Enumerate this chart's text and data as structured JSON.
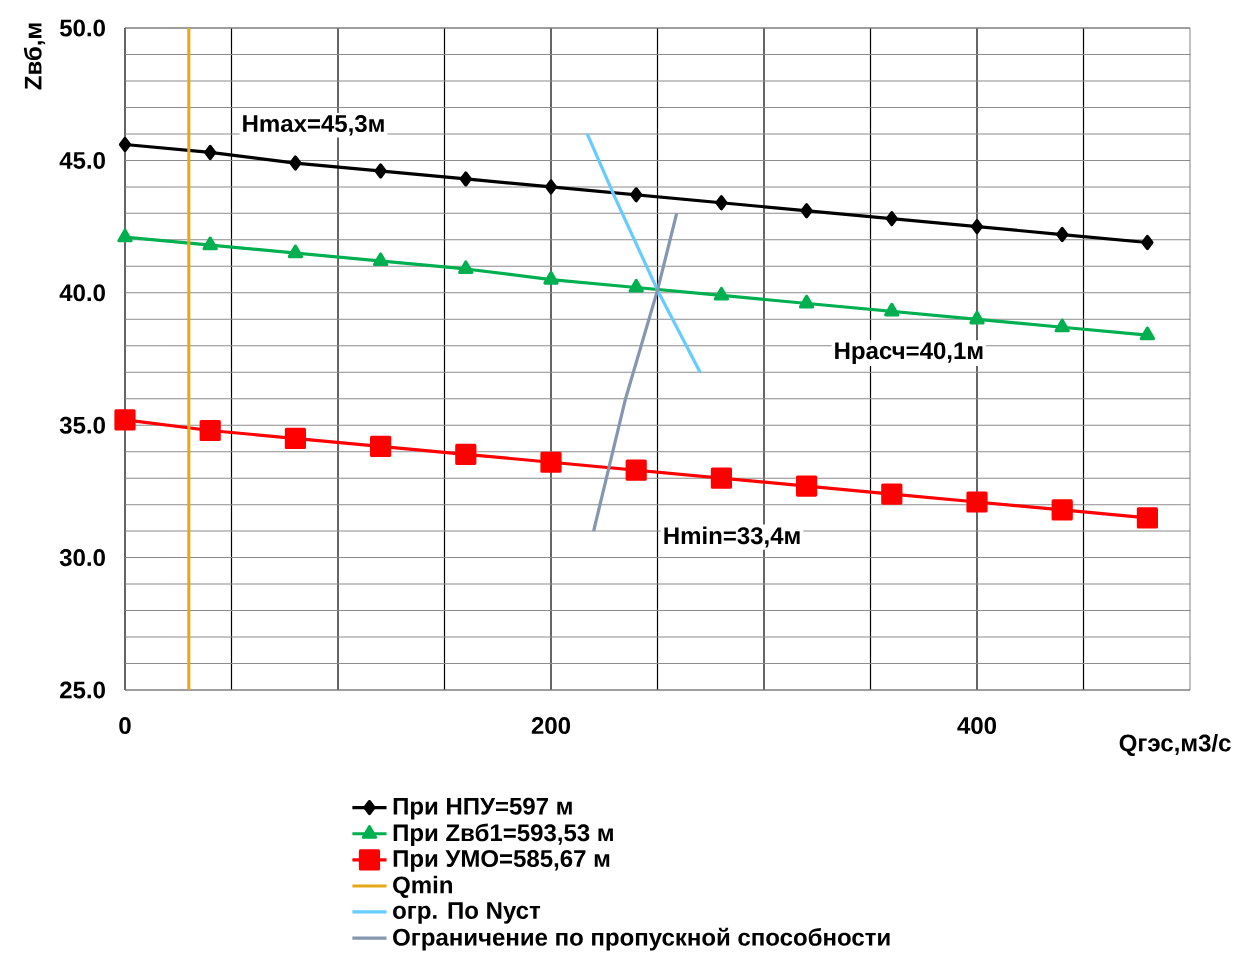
{
  "chart_data": {
    "type": "line",
    "xlabel": "Qгэс,м3/с",
    "ylabel": "Zвб,м",
    "xlim": [
      0,
      500
    ],
    "ylim": [
      25,
      50
    ],
    "xticks": [
      0,
      {
        "value": 50,
        "label": null
      },
      {
        "value": 100,
        "label": null
      },
      {
        "value": 150,
        "label": null
      },
      200,
      {
        "value": 250,
        "label": null
      },
      {
        "value": 300,
        "label": null
      },
      {
        "value": 350,
        "label": null
      },
      400,
      {
        "value": 450,
        "label": null
      }
    ],
    "yticks": [
      {
        "value": 25,
        "label": "25.0"
      },
      {
        "value": 26,
        "label": null
      },
      {
        "value": 27,
        "label": null
      },
      {
        "value": 28,
        "label": null
      },
      {
        "value": 29,
        "label": null
      },
      {
        "value": 30,
        "label": "30.0"
      },
      {
        "value": 31,
        "label": null
      },
      {
        "value": 32,
        "label": null
      },
      {
        "value": 33,
        "label": null
      },
      {
        "value": 34,
        "label": null
      },
      {
        "value": 35,
        "label": "35.0"
      },
      {
        "value": 36,
        "label": null
      },
      {
        "value": 37,
        "label": null
      },
      {
        "value": 38,
        "label": null
      },
      {
        "value": 39,
        "label": null
      },
      {
        "value": 40,
        "label": "40.0"
      },
      {
        "value": 41,
        "label": null
      },
      {
        "value": 42,
        "label": null
      },
      {
        "value": 43,
        "label": null
      },
      {
        "value": 44,
        "label": null
      },
      {
        "value": 45,
        "label": "45.0"
      },
      {
        "value": 46,
        "label": null
      },
      {
        "value": 47,
        "label": null
      },
      {
        "value": 48,
        "label": null
      },
      {
        "value": 49,
        "label": null
      },
      {
        "value": 50,
        "label": "50.0"
      }
    ],
    "grid": true,
    "legend": "bottom",
    "series": [
      {
        "name": "При НПУ=597 м",
        "color": "#000000",
        "marker": "diamond",
        "x": [
          0,
          40,
          80,
          120,
          160,
          200,
          240,
          280,
          320,
          360,
          400,
          440,
          480
        ],
        "values": [
          45.6,
          45.3,
          44.9,
          44.6,
          44.3,
          44.0,
          43.7,
          43.4,
          43.1,
          42.8,
          42.5,
          42.2,
          41.9
        ]
      },
      {
        "name": "При Zвб1=593,53 м",
        "color": "#00b050",
        "marker": "triangle",
        "x": [
          0,
          40,
          80,
          120,
          160,
          200,
          240,
          280,
          320,
          360,
          400,
          440,
          480
        ],
        "values": [
          42.1,
          41.8,
          41.5,
          41.2,
          40.9,
          40.5,
          40.2,
          39.9,
          39.6,
          39.3,
          39.0,
          38.7,
          38.4
        ]
      },
      {
        "name": "При УМО=585,67 м",
        "color": "#ff0000",
        "marker": "square",
        "x": [
          0,
          40,
          80,
          120,
          160,
          200,
          240,
          280,
          320,
          360,
          400,
          440,
          480
        ],
        "values": [
          35.2,
          34.8,
          34.5,
          34.2,
          33.9,
          33.6,
          33.3,
          33.0,
          32.7,
          32.4,
          32.1,
          31.8,
          31.5
        ]
      },
      {
        "name": "Qmin",
        "color": "#e6a817",
        "marker": "none",
        "x": [
          30,
          30
        ],
        "values": [
          25,
          50
        ]
      },
      {
        "name": "огр. По Nуст",
        "color": "#66ccff",
        "marker": "none",
        "x": [
          217,
          230,
          250,
          270
        ],
        "values": [
          46.0,
          43.6,
          40.1,
          37.0
        ]
      },
      {
        "name": "Ограничение по пропускной способности",
        "color": "#8496b0",
        "marker": "none",
        "x": [
          220,
          235,
          250,
          259
        ],
        "values": [
          31.0,
          36.0,
          40.1,
          43.0
        ]
      }
    ],
    "annotations": [
      "Hmax=45,3м",
      "Hрасч=40,1м",
      "Hmin=33,4м"
    ]
  }
}
